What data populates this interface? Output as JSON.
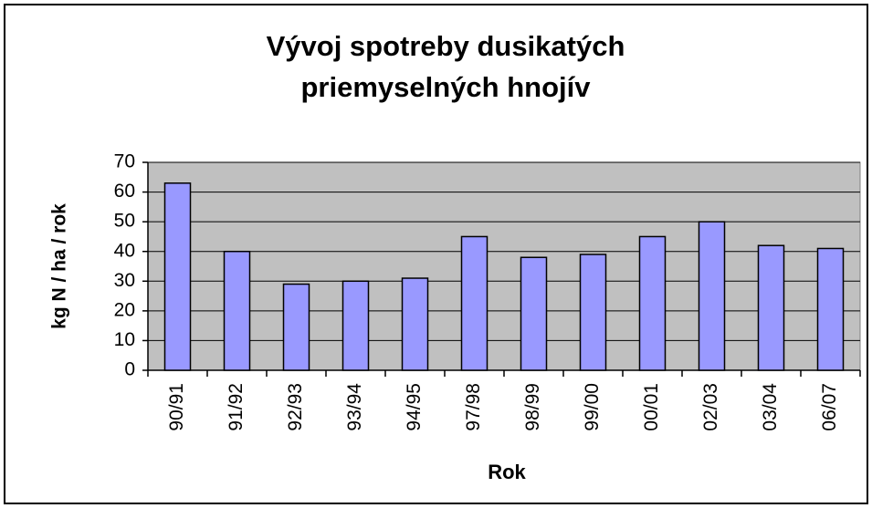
{
  "chart_data": {
    "type": "bar",
    "title": [
      "Vývoj spotreby dusikatých",
      "priemyselných hnojív"
    ],
    "x_label": "Rok",
    "y_label": "kg N / ha / rok",
    "categories": [
      "90/91",
      "91/92",
      "92/93",
      "93/94",
      "94/95",
      "97/98",
      "98/99",
      "99/00",
      "00/01",
      "02/03",
      "03/04",
      "06/07"
    ],
    "values": [
      63,
      40,
      29,
      30,
      31,
      45,
      38,
      39,
      45,
      50,
      42,
      41
    ],
    "color": "#9999ff",
    "ylim": [
      0,
      70
    ],
    "yticks": [
      0,
      10,
      20,
      30,
      40,
      50,
      60,
      70
    ],
    "grid": true
  }
}
